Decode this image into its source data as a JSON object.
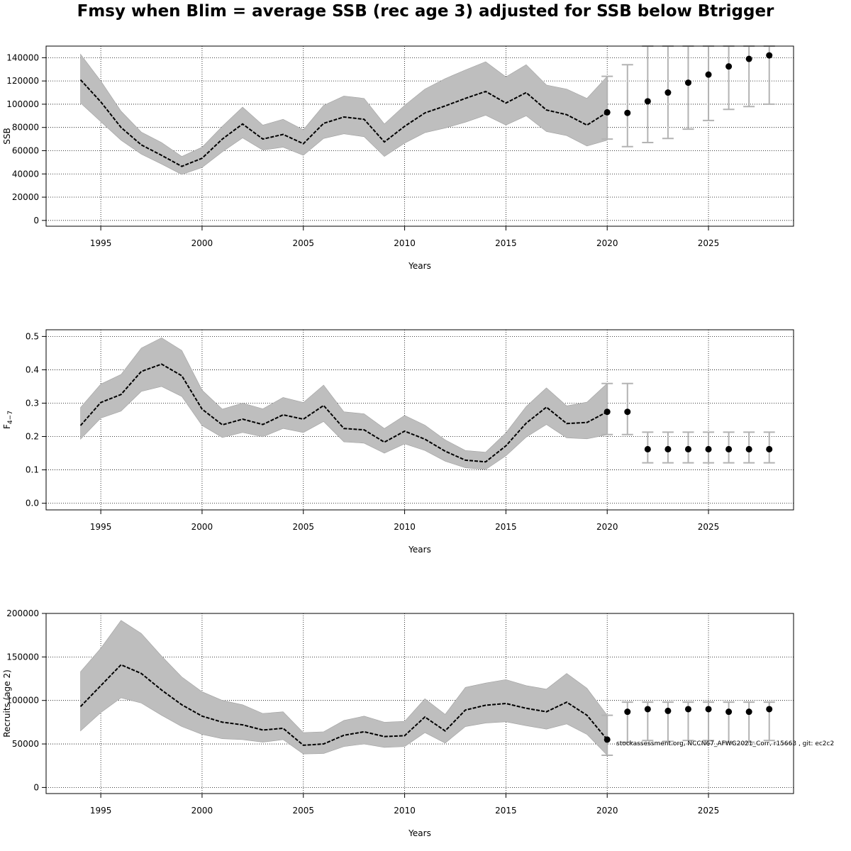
{
  "title": "Fmsy when Blim = average SSB (rec age 3) adjusted for SSB below Btrigger",
  "footnote": "stockassessment.org, NCCN67_AFWG2021_Corr, r15663 , git: ec2c2",
  "colors": {
    "band": "#bebebe",
    "line": "#000000",
    "errorbar": "#b3b3b3",
    "grid": "#000000"
  },
  "chart_data": [
    {
      "type": "line",
      "ylabel": "SSB",
      "xlabel": "Years",
      "xlim": [
        1992.3,
        2029.2
      ],
      "ylim": [
        -5000,
        150000
      ],
      "xticks": [
        1995,
        2000,
        2005,
        2010,
        2015,
        2020,
        2025
      ],
      "yticks": [
        0,
        20000,
        40000,
        60000,
        80000,
        100000,
        120000,
        140000
      ],
      "grid": true,
      "x": [
        1994,
        1995,
        1996,
        1997,
        1998,
        1999,
        2000,
        2001,
        2002,
        2003,
        2004,
        2005,
        2006,
        2007,
        2008,
        2009,
        2010,
        2011,
        2012,
        2013,
        2014,
        2015,
        2016,
        2017,
        2018,
        2019,
        2020
      ],
      "estimate": [
        121000,
        102000,
        80000,
        65000,
        56000,
        46500,
        53500,
        70000,
        83000,
        70000,
        74000,
        66000,
        83500,
        89000,
        87000,
        67500,
        81000,
        92500,
        98500,
        105000,
        111000,
        101000,
        110000,
        95000,
        91000,
        82000,
        93000
      ],
      "lower": [
        101000,
        85000,
        69000,
        57000,
        48500,
        39500,
        45500,
        59000,
        71000,
        60500,
        63000,
        56000,
        70500,
        74500,
        72000,
        55000,
        66500,
        75500,
        79500,
        84500,
        90500,
        82000,
        90000,
        76500,
        73000,
        64000,
        69000
      ],
      "upper": [
        143000,
        120000,
        94000,
        76000,
        67000,
        55000,
        63000,
        81000,
        97500,
        82000,
        87000,
        78000,
        99000,
        107000,
        105000,
        83000,
        99000,
        113000,
        122000,
        129500,
        136500,
        123500,
        134000,
        116500,
        113000,
        105000,
        124000
      ],
      "forecast": {
        "x": [
          2020,
          2021,
          2022,
          2023,
          2024,
          2025,
          2026,
          2027,
          2028
        ],
        "values": [
          93000,
          92500,
          102500,
          110000,
          118500,
          125500,
          132500,
          139000,
          142000
        ],
        "lower": [
          70000,
          63500,
          67000,
          70500,
          78500,
          86000,
          95500,
          98000,
          100000
        ],
        "upper": [
          124000,
          134000,
          150000,
          150000,
          150000,
          150000,
          150000,
          150000,
          150000
        ]
      }
    },
    {
      "type": "line",
      "ylabel": "F",
      "ylabel_sub": "4−7",
      "xlabel": "Years",
      "xlim": [
        1992.3,
        2029.2
      ],
      "ylim": [
        -0.02,
        0.52
      ],
      "xticks": [
        1995,
        2000,
        2005,
        2010,
        2015,
        2020,
        2025
      ],
      "yticks": [
        0.0,
        0.1,
        0.2,
        0.3,
        0.4,
        0.5
      ],
      "ytick_labels": [
        "0.0",
        "0.1",
        "0.2",
        "0.3",
        "0.4",
        "0.5"
      ],
      "grid": true,
      "x": [
        1994,
        1995,
        1996,
        1997,
        1998,
        1999,
        2000,
        2001,
        2002,
        2003,
        2004,
        2005,
        2006,
        2007,
        2008,
        2009,
        2010,
        2011,
        2012,
        2013,
        2014,
        2015,
        2016,
        2017,
        2018,
        2019,
        2020
      ],
      "estimate": [
        0.233,
        0.302,
        0.326,
        0.395,
        0.417,
        0.382,
        0.282,
        0.235,
        0.252,
        0.236,
        0.265,
        0.252,
        0.293,
        0.224,
        0.22,
        0.183,
        0.216,
        0.192,
        0.156,
        0.129,
        0.124,
        0.172,
        0.24,
        0.288,
        0.239,
        0.242,
        0.274
      ],
      "lower": [
        0.192,
        0.255,
        0.276,
        0.335,
        0.35,
        0.32,
        0.233,
        0.197,
        0.212,
        0.199,
        0.224,
        0.212,
        0.245,
        0.184,
        0.18,
        0.15,
        0.178,
        0.158,
        0.126,
        0.106,
        0.101,
        0.142,
        0.198,
        0.236,
        0.196,
        0.193,
        0.205
      ],
      "upper": [
        0.287,
        0.357,
        0.386,
        0.465,
        0.496,
        0.458,
        0.339,
        0.282,
        0.3,
        0.283,
        0.317,
        0.302,
        0.354,
        0.274,
        0.268,
        0.224,
        0.263,
        0.234,
        0.19,
        0.158,
        0.153,
        0.211,
        0.29,
        0.346,
        0.292,
        0.303,
        0.359
      ],
      "forecast": {
        "x": [
          2020,
          2021,
          2022,
          2023,
          2024,
          2025,
          2026,
          2027,
          2028
        ],
        "values": [
          0.274,
          0.274,
          0.162,
          0.162,
          0.162,
          0.162,
          0.162,
          0.162,
          0.162
        ],
        "lower": [
          0.206,
          0.206,
          0.121,
          0.121,
          0.121,
          0.121,
          0.121,
          0.121,
          0.121
        ],
        "upper": [
          0.359,
          0.359,
          0.213,
          0.213,
          0.213,
          0.213,
          0.213,
          0.213,
          0.213
        ]
      }
    },
    {
      "type": "line",
      "ylabel": "Recruits (age 2)",
      "xlabel": "Years",
      "xlim": [
        1992.3,
        2029.2
      ],
      "ylim": [
        -7000,
        200000
      ],
      "xticks": [
        1995,
        2000,
        2005,
        2010,
        2015,
        2020,
        2025
      ],
      "yticks": [
        0,
        50000,
        100000,
        150000,
        200000
      ],
      "grid": true,
      "x": [
        1994,
        1995,
        1996,
        1997,
        1998,
        1999,
        2000,
        2001,
        2002,
        2003,
        2004,
        2005,
        2006,
        2007,
        2008,
        2009,
        2010,
        2011,
        2012,
        2013,
        2014,
        2015,
        2016,
        2017,
        2018,
        2019,
        2020
      ],
      "estimate": [
        93000,
        117000,
        141000,
        131000,
        112000,
        95000,
        82000,
        75000,
        72000,
        66000,
        68000,
        48500,
        50000,
        60000,
        64000,
        58500,
        59500,
        81000,
        65000,
        89000,
        94500,
        96500,
        91000,
        87000,
        98000,
        83000,
        55000
      ],
      "lower": [
        65000,
        86000,
        103000,
        97000,
        83000,
        70000,
        61000,
        56000,
        55000,
        52000,
        55000,
        38500,
        39000,
        47000,
        50000,
        46000,
        47000,
        63000,
        51000,
        70000,
        74000,
        75500,
        71000,
        67000,
        73000,
        61000,
        37000
      ],
      "upper": [
        133000,
        160000,
        192000,
        177000,
        151000,
        127000,
        110000,
        100000,
        95000,
        85000,
        87000,
        63000,
        64000,
        77000,
        82000,
        75000,
        76000,
        102000,
        84000,
        115000,
        120000,
        124000,
        117000,
        113000,
        131000,
        114000,
        83000
      ],
      "forecast": {
        "x": [
          2020,
          2021,
          2022,
          2023,
          2024,
          2025,
          2026,
          2027,
          2028
        ],
        "values": [
          55000,
          87000,
          90000,
          88000,
          90000,
          90000,
          87000,
          87000,
          90000
        ],
        "lower": [
          37000,
          52000,
          54000,
          53000,
          54000,
          54000,
          52000,
          52000,
          54000
        ],
        "upper": [
          83000,
          98000,
          98000,
          98000,
          98000,
          98000,
          98000,
          98000,
          98000
        ]
      }
    }
  ]
}
